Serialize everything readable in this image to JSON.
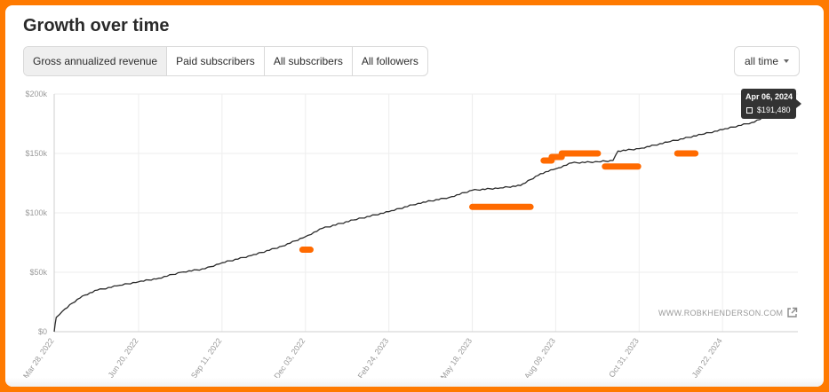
{
  "title": "Growth over time",
  "tabs": [
    {
      "label": "Gross annualized revenue",
      "active": true
    },
    {
      "label": "Paid subscribers",
      "active": false
    },
    {
      "label": "All subscribers",
      "active": false
    },
    {
      "label": "All followers",
      "active": false
    }
  ],
  "range": {
    "label": "all time",
    "icon": "caret-down-icon"
  },
  "tooltip": {
    "date": "Apr 06, 2024",
    "value": "$191,480"
  },
  "watermark": {
    "text": "WWW.ROBKHENDERSON.COM",
    "icon": "external-link-icon"
  },
  "colors": {
    "line": "#2a2a2a",
    "annotation": "#ff6a00",
    "grid": "#eeeeee",
    "frame": "#ff7a00"
  },
  "chart_data": {
    "type": "line",
    "title": "",
    "xlabel": "",
    "ylabel": "",
    "ylim": [
      0,
      200000
    ],
    "grid": true,
    "y_ticks": [
      "$0",
      "$50k",
      "$100k",
      "$150k",
      "$200k"
    ],
    "y_tick_values": [
      0,
      50000,
      100000,
      150000,
      200000
    ],
    "x_ticks": [
      "Mar 28, 2022",
      "Jun 20, 2022",
      "Sep 11, 2022",
      "Dec 03, 2022",
      "Feb 24, 2023",
      "May 18, 2023",
      "Aug 09, 2023",
      "Oct 31, 2023",
      "Jan 22, 2024"
    ],
    "x_tick_dates": [
      "2022-03-28",
      "2022-06-20",
      "2022-09-11",
      "2022-12-03",
      "2023-02-24",
      "2023-05-18",
      "2023-08-09",
      "2023-10-31",
      "2024-01-22"
    ],
    "series": [
      {
        "points": [
          [
            "2022-03-28",
            0
          ],
          [
            "2022-03-30",
            12000
          ],
          [
            "2022-04-05",
            17000
          ],
          [
            "2022-04-15",
            24000
          ],
          [
            "2022-04-25",
            30000
          ],
          [
            "2022-05-10",
            35000
          ],
          [
            "2022-06-01",
            39000
          ],
          [
            "2022-06-20",
            42000
          ],
          [
            "2022-07-10",
            45000
          ],
          [
            "2022-08-01",
            50000
          ],
          [
            "2022-08-25",
            53000
          ],
          [
            "2022-09-11",
            58000
          ],
          [
            "2022-10-10",
            64000
          ],
          [
            "2022-11-10",
            72000
          ],
          [
            "2022-12-03",
            80000
          ],
          [
            "2022-12-20",
            87000
          ],
          [
            "2023-01-20",
            94000
          ],
          [
            "2023-02-24",
            101000
          ],
          [
            "2023-03-25",
            108000
          ],
          [
            "2023-04-25",
            113000
          ],
          [
            "2023-05-18",
            119000
          ],
          [
            "2023-06-15",
            121000
          ],
          [
            "2023-07-05",
            123000
          ],
          [
            "2023-07-25",
            133000
          ],
          [
            "2023-08-09",
            137000
          ],
          [
            "2023-08-25",
            142000
          ],
          [
            "2023-09-20",
            143000
          ],
          [
            "2023-10-05",
            144000
          ],
          [
            "2023-10-10",
            152000
          ],
          [
            "2023-10-31",
            154000
          ],
          [
            "2023-12-01",
            160000
          ],
          [
            "2024-01-01",
            166000
          ],
          [
            "2024-01-22",
            170000
          ],
          [
            "2024-02-20",
            176000
          ],
          [
            "2024-03-15",
            184000
          ],
          [
            "2024-04-06",
            191480
          ]
        ]
      }
    ],
    "annotations": [
      {
        "x0": "2022-11-30",
        "x1": "2022-12-08",
        "y": 69000
      },
      {
        "x0": "2023-05-18",
        "x1": "2023-07-15",
        "y": 105000
      },
      {
        "x0": "2023-07-28",
        "x1": "2023-08-05",
        "y": 144000
      },
      {
        "x0": "2023-08-05",
        "x1": "2023-08-15",
        "y": 147000
      },
      {
        "x0": "2023-08-15",
        "x1": "2023-09-20",
        "y": 150000
      },
      {
        "x0": "2023-09-27",
        "x1": "2023-10-30",
        "y": 139000
      },
      {
        "x0": "2023-12-08",
        "x1": "2023-12-26",
        "y": 150000
      }
    ]
  }
}
